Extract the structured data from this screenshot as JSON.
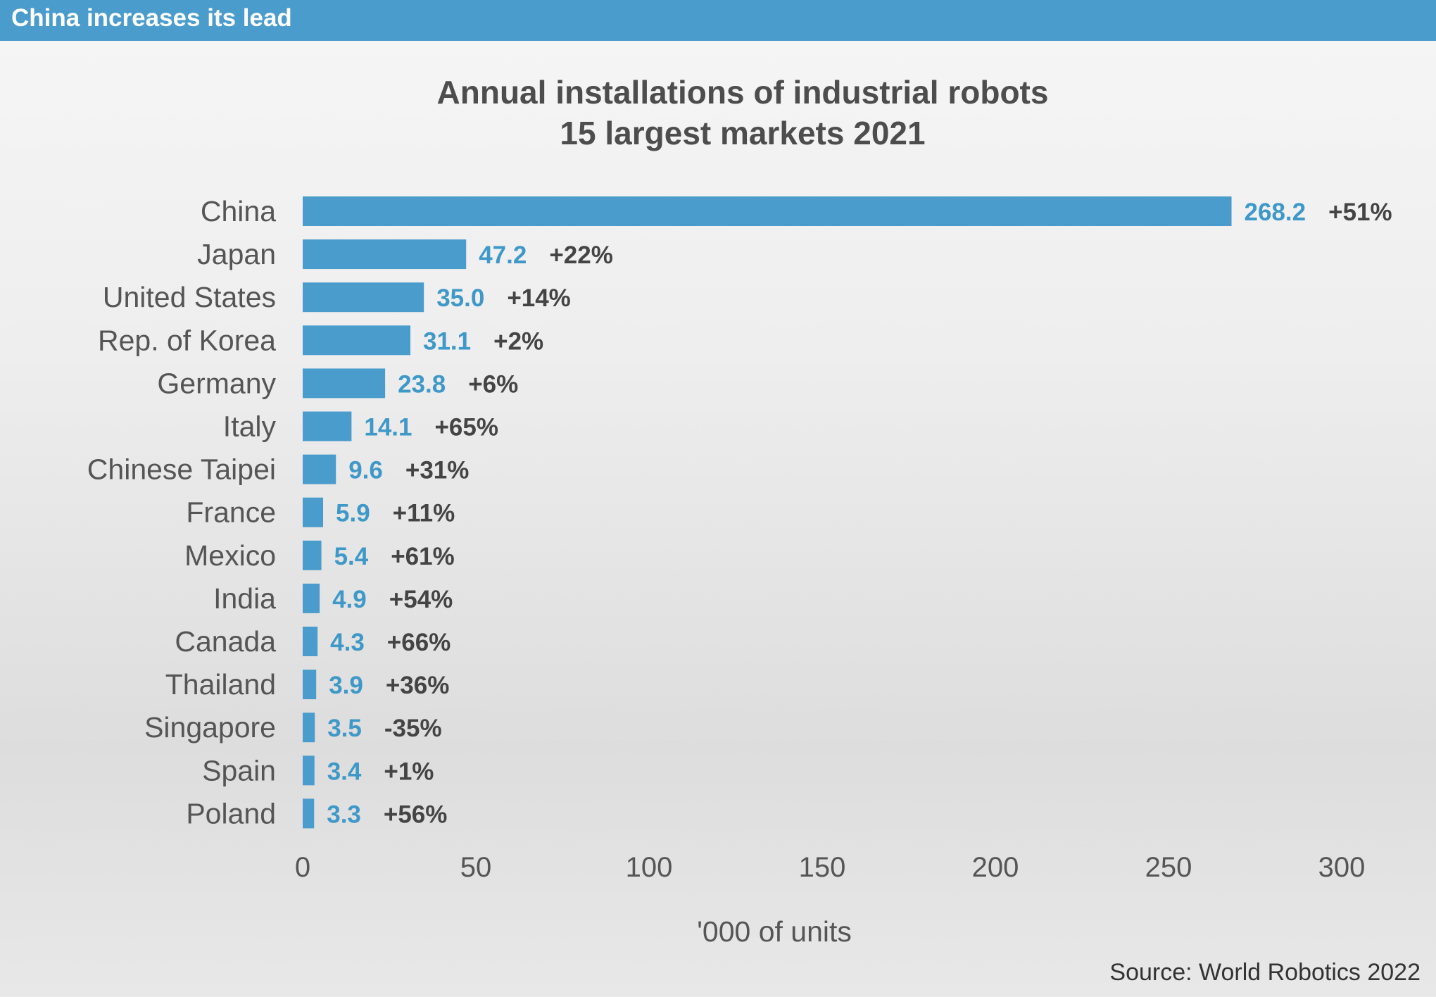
{
  "banner": {
    "text": "China increases its lead"
  },
  "colors": {
    "banner": "#4a9ccc",
    "bar": "#4a9ccc",
    "value_label": "#3e98c8",
    "pct_label": "#444444"
  },
  "source": "Source: World Robotics 2022",
  "chart_data": {
    "type": "bar",
    "orientation": "horizontal",
    "title_lines": [
      "Annual installations of industrial robots",
      "15 largest markets 2021"
    ],
    "categories": [
      "China",
      "Japan",
      "United States",
      "Rep. of Korea",
      "Germany",
      "Italy",
      "Chinese Taipei",
      "France",
      "Mexico",
      "India",
      "Canada",
      "Thailand",
      "Singapore",
      "Spain",
      "Poland"
    ],
    "values": [
      268.2,
      47.2,
      35.0,
      31.1,
      23.8,
      14.1,
      9.6,
      5.9,
      5.4,
      4.9,
      4.3,
      3.9,
      3.5,
      3.4,
      3.3
    ],
    "value_labels": [
      "268.2",
      "47.2",
      "35.0",
      "31.1",
      "23.8",
      "14.1",
      "9.6",
      "5.9",
      "5.4",
      "4.9",
      "4.3",
      "3.9",
      "3.5",
      "3.4",
      "3.3"
    ],
    "growth_labels": [
      "+51%",
      "+22%",
      "+14%",
      "+2%",
      "+6%",
      "+65%",
      "+31%",
      "+11%",
      "+61%",
      "+54%",
      "+66%",
      "+36%",
      "-35%",
      "+1%",
      "+56%"
    ],
    "xticks": [
      0,
      50,
      100,
      150,
      200,
      250,
      300
    ],
    "xlim": [
      0,
      300
    ],
    "xlabel": "'000 of units",
    "grid": false,
    "legend": "none"
  }
}
